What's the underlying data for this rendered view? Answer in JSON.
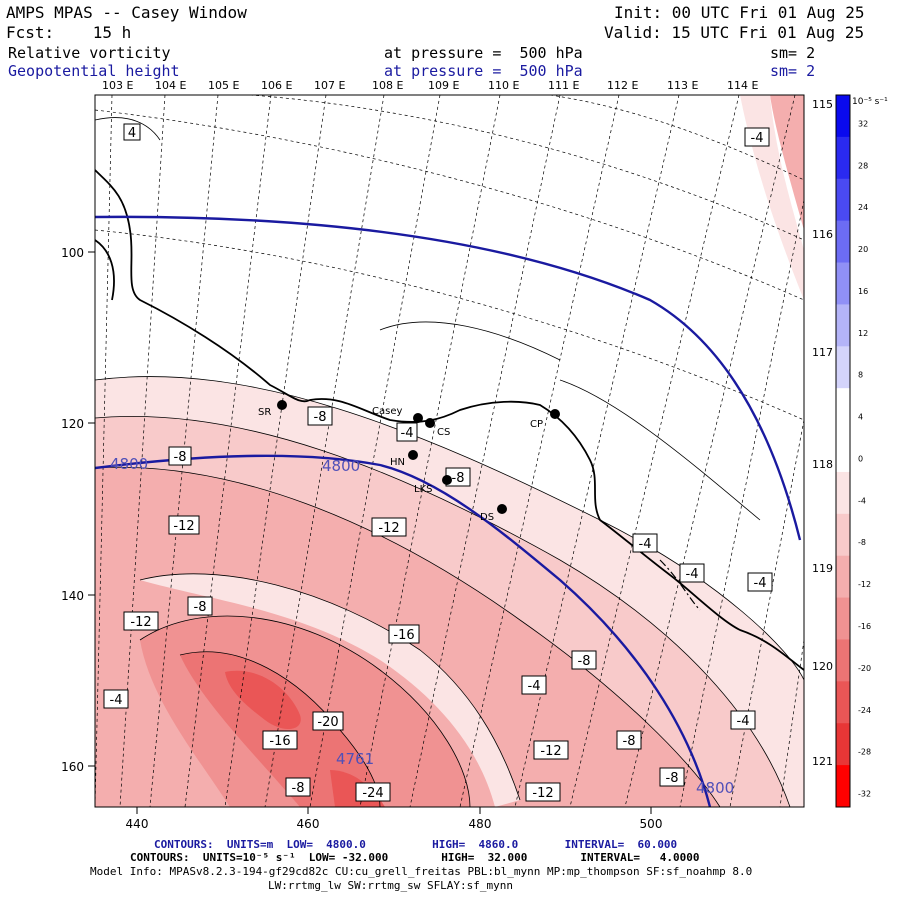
{
  "header": {
    "model": "AMPS MPAS -- Casey Window",
    "init": "Init: 00 UTC Fri 01 Aug 25",
    "fcst": "Fcst:    15 h",
    "valid": "Valid: 15 UTC Fri 01 Aug 25",
    "field1": "Relative vorticity",
    "field1_level": "at pressure =  500 hPa",
    "field1_sm": "sm= 2",
    "field2": "Geopotential height",
    "field2_level": "at pressure =  500 hPa",
    "field2_sm": "sm= 2"
  },
  "top_lon_labels": [
    "103 E",
    "104 E",
    "105 E",
    "106 E",
    "107 E",
    "108 E",
    "109 E",
    "110 E",
    "111 E",
    "112 E",
    "113 E",
    "114 E"
  ],
  "right_lon_labels": [
    "115 E",
    "116 E",
    "117 E",
    "118 E",
    "119 E",
    "120 E",
    "121 E"
  ],
  "y_axis_ticks": [
    "100",
    "120",
    "140",
    "160"
  ],
  "x_axis_ticks": [
    "440",
    "460",
    "480",
    "500"
  ],
  "stations": [
    {
      "name": "SR"
    },
    {
      "name": "Casey"
    },
    {
      "name": "CS"
    },
    {
      "name": "HN"
    },
    {
      "name": "LKS"
    },
    {
      "name": "DS"
    },
    {
      "name": "CP"
    }
  ],
  "contour_labels": [
    "4",
    "-4",
    "-8",
    "-12",
    "-16",
    "-20",
    "-24",
    "-8",
    "-12",
    "-8",
    "-4",
    "-4",
    "-4",
    "-8",
    "-12",
    "-8",
    "-4",
    "-8",
    "-12",
    "-8",
    "-12",
    "-16",
    "-4",
    "-8",
    "-4",
    "-4"
  ],
  "height_labels": [
    "4800",
    "4800",
    "4761",
    "4800"
  ],
  "colorbar": {
    "unit": "10⁻⁵ s⁻¹",
    "ticks": [
      "32",
      "28",
      "24",
      "20",
      "16",
      "12",
      "8",
      "4",
      "0",
      "-4",
      "-8",
      "-12",
      "-16",
      "-20",
      "-24",
      "-28",
      "-32"
    ],
    "colors": [
      "#0a0aee",
      "#2a2af0",
      "#4a4af2",
      "#6c6cf4",
      "#9090f6",
      "#b4b4f8",
      "#d4d4fb",
      "#ffffff",
      "#ffffff",
      "#fbe4e4",
      "#f8caca",
      "#f4aeae",
      "#f09292",
      "#ec7474",
      "#ea5656",
      "#e83636",
      "#ff0000"
    ]
  },
  "footer": {
    "line1": "CONTOURS:  UNITS=m  LOW=  4800.0          HIGH=  4860.0       INTERVAL=  60.000",
    "line2": "CONTOURS:  UNITS=10⁻⁵ s⁻¹  LOW= -32.000        HIGH=  32.000        INTERVAL=   4.0000",
    "line3": "Model Info: MPASv8.2.3-194-gf29cd82c CU:cu_grell_freitas PBL:bl_mynn MP:mp_thompson SF:sf_noahmp 8.0",
    "line4": "LW:rrtmg_lw SW:rrtmg_sw SFLAY:sf_mynn"
  }
}
